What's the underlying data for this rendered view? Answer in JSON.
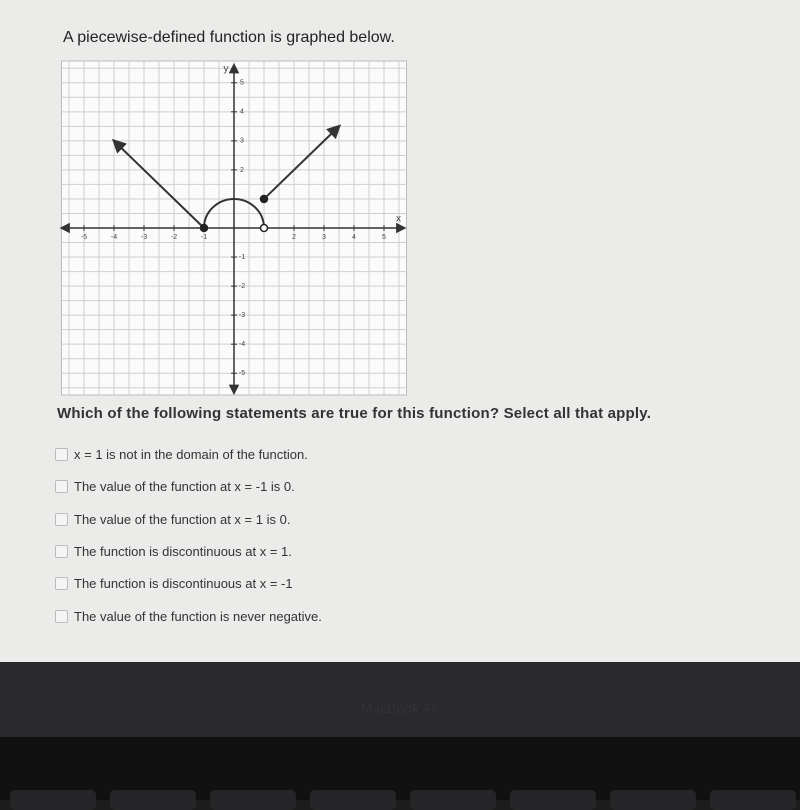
{
  "question": "A piecewise-defined function is graphed below.",
  "graph": {
    "x_label": "x",
    "y_label": "y",
    "xlim": [
      -5.75,
      5.75
    ],
    "ylim": [
      -5.75,
      5.75
    ],
    "grid_step": 0.5,
    "xticks": [
      -5,
      -4,
      -3,
      -2,
      -1,
      2,
      3,
      4,
      5
    ],
    "yticks": [
      5,
      4,
      3,
      2,
      -1,
      -2,
      -3,
      -4,
      -5
    ],
    "pieces": [
      {
        "kind": "line",
        "x": [
          -4,
          -1
        ],
        "y": [
          3,
          0
        ]
      },
      {
        "kind": "semicircle",
        "center": 0,
        "radius": 1
      },
      {
        "kind": "line",
        "x": [
          1,
          3.5
        ],
        "y": [
          1,
          3.5
        ]
      }
    ],
    "points": [
      {
        "x": -1,
        "y": 0,
        "filled": true
      },
      {
        "x": 1,
        "y": 1,
        "filled": true
      },
      {
        "x": 1,
        "y": 0,
        "filled": false
      }
    ]
  },
  "prompt": "Which of the following statements are true for this function? Select all that apply.",
  "options": [
    "x = 1 is not in the domain of the function.",
    "The value of the function at x = -1 is 0.",
    "The value of the function at x = 1 is 0.",
    "The function is discontinuous at x = 1.",
    "The function is discontinuous at x = -1",
    "The value of the function is never negative."
  ],
  "device_label": "MacBook Air"
}
